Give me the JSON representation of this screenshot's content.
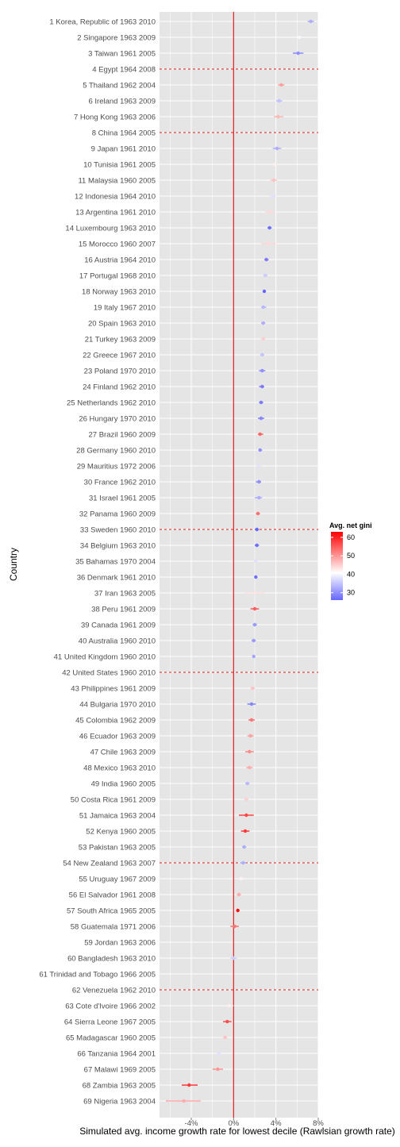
{
  "chart_data": {
    "type": "scatter",
    "xlabel": "Simulated avg. income growth rate for lowest decile (Rawlsian growth rate)",
    "ylabel": "Country",
    "xlim": [
      -7,
      8
    ],
    "x_ticks": [
      -4,
      0,
      4,
      8
    ],
    "x_tick_labels": [
      "-4%",
      "0%",
      "4%",
      "8%"
    ],
    "reference_line_x": 0,
    "grid": true,
    "legend": {
      "title": "Avg. net gini",
      "position": "right",
      "ticks": [
        30,
        40,
        50,
        60
      ],
      "range": [
        26,
        63
      ]
    },
    "colors": {
      "panel": "#e5e5e5",
      "grid": "#ffffff",
      "reference": "#e31a1c",
      "low": "#6666ff",
      "mid": "#ffffff",
      "high": "#ff0000"
    },
    "dashed_separators_after_rank": [
      3,
      7,
      32,
      41,
      53,
      61
    ],
    "countries": [
      {
        "label": "1 Korea, Republic of 1963 2010",
        "growth": 7.3,
        "lo": 7.0,
        "hi": 7.6,
        "gini": 33
      },
      {
        "label": "2 Singapore 1963 2009",
        "growth": 6.2,
        "lo": 5.9,
        "hi": 6.5,
        "gini": 40
      },
      {
        "label": "3 Taiwan 1961 2005",
        "growth": 6.1,
        "lo": 5.6,
        "hi": 6.6,
        "gini": 30
      },
      {
        "label": "4 Egypt 1964 2008",
        "growth": null,
        "lo": null,
        "hi": null,
        "gini": null
      },
      {
        "label": "5 Thailand 1962 2004",
        "growth": 4.5,
        "lo": 4.2,
        "hi": 4.8,
        "gini": 49
      },
      {
        "label": "6 Ireland 1963 2009",
        "growth": 4.3,
        "lo": 4.0,
        "hi": 4.6,
        "gini": 35
      },
      {
        "label": "7 Hong Kong 1963 2006",
        "growth": 4.2,
        "lo": 3.8,
        "hi": 4.7,
        "gini": 47
      },
      {
        "label": "8 China 1964 2005",
        "growth": null,
        "lo": null,
        "hi": null,
        "gini": null
      },
      {
        "label": "9 Japan 1961 2010",
        "growth": 4.1,
        "lo": 3.7,
        "hi": 4.5,
        "gini": 33
      },
      {
        "label": "10 Tunisia 1961 2005",
        "growth": 3.9,
        "lo": 3.6,
        "hi": 4.2,
        "gini": 42
      },
      {
        "label": "11 Malaysia 1960 2005",
        "growth": 3.8,
        "lo": 3.5,
        "hi": 4.1,
        "gini": 46
      },
      {
        "label": "12 Indonesia 1964 2010",
        "growth": 3.7,
        "lo": 3.4,
        "hi": 4.0,
        "gini": 38
      },
      {
        "label": "13 Argentina 1961 2010",
        "growth": 3.4,
        "lo": 3.0,
        "hi": 3.9,
        "gini": 44
      },
      {
        "label": "14 Luxembourg 1963 2010",
        "growth": 3.4,
        "lo": 3.2,
        "hi": 3.6,
        "gini": 27
      },
      {
        "label": "15 Morocco 1960 2007",
        "growth": 3.3,
        "lo": 2.6,
        "hi": 4.0,
        "gini": 44
      },
      {
        "label": "16 Austria 1964 2010",
        "growth": 3.1,
        "lo": 2.9,
        "hi": 3.3,
        "gini": 28
      },
      {
        "label": "17 Portugal 1968 2010",
        "growth": 3.0,
        "lo": 2.8,
        "hi": 3.2,
        "gini": 36
      },
      {
        "label": "18 Norway 1963 2010",
        "growth": 2.9,
        "lo": 2.8,
        "hi": 3.0,
        "gini": 26
      },
      {
        "label": "19 Italy 1967 2010",
        "growth": 2.8,
        "lo": 2.6,
        "hi": 3.1,
        "gini": 34
      },
      {
        "label": "20 Spain 1963 2010",
        "growth": 2.8,
        "lo": 2.6,
        "hi": 3.0,
        "gini": 33
      },
      {
        "label": "21 Turkey 1963 2009",
        "growth": 2.8,
        "lo": 2.6,
        "hi": 3.0,
        "gini": 45
      },
      {
        "label": "22 Greece 1967 2010",
        "growth": 2.7,
        "lo": 2.5,
        "hi": 2.9,
        "gini": 35
      },
      {
        "label": "23 Poland 1970 2010",
        "growth": 2.7,
        "lo": 2.4,
        "hi": 3.0,
        "gini": 30
      },
      {
        "label": "24 Finland 1962 2010",
        "growth": 2.7,
        "lo": 2.4,
        "hi": 2.9,
        "gini": 28
      },
      {
        "label": "25 Netherlands 1962 2010",
        "growth": 2.6,
        "lo": 2.4,
        "hi": 2.8,
        "gini": 28
      },
      {
        "label": "26 Hungary 1970 2010",
        "growth": 2.6,
        "lo": 2.3,
        "hi": 2.9,
        "gini": 29
      },
      {
        "label": "27 Brazil 1960 2009",
        "growth": 2.5,
        "lo": 2.3,
        "hi": 2.8,
        "gini": 54
      },
      {
        "label": "28 Germany 1960 2010",
        "growth": 2.5,
        "lo": 2.4,
        "hi": 2.7,
        "gini": 30
      },
      {
        "label": "29 Mauritius 1972 2006",
        "growth": 2.4,
        "lo": 2.2,
        "hi": 2.6,
        "gini": 38
      },
      {
        "label": "30 France 1962 2010",
        "growth": 2.4,
        "lo": 2.1,
        "hi": 2.6,
        "gini": 30
      },
      {
        "label": "31 Israel 1961 2005",
        "growth": 2.4,
        "lo": 2.0,
        "hi": 2.7,
        "gini": 33
      },
      {
        "label": "32 Panama 1960 2009",
        "growth": 2.3,
        "lo": 2.1,
        "hi": 2.5,
        "gini": 53
      },
      {
        "label": "33 Sweden 1960 2010",
        "growth": 2.2,
        "lo": 2.0,
        "hi": 2.4,
        "gini": 26
      },
      {
        "label": "34 Belgium 1963 2010",
        "growth": 2.2,
        "lo": 2.0,
        "hi": 2.4,
        "gini": 27
      },
      {
        "label": "35 Bahamas 1970 2004",
        "growth": 2.1,
        "lo": 1.9,
        "hi": 2.3,
        "gini": 38
      },
      {
        "label": "36 Denmark 1961 2010",
        "growth": 2.1,
        "lo": 2.0,
        "hi": 2.2,
        "gini": 27
      },
      {
        "label": "37 Iran 1963 2005",
        "growth": 2.0,
        "lo": 1.0,
        "hi": 3.0,
        "gini": 43
      },
      {
        "label": "38 Peru 1961 2009",
        "growth": 2.0,
        "lo": 1.6,
        "hi": 2.4,
        "gini": 55
      },
      {
        "label": "39 Canada 1961 2009",
        "growth": 2.0,
        "lo": 1.8,
        "hi": 2.2,
        "gini": 31
      },
      {
        "label": "40 Australia 1960 2010",
        "growth": 1.9,
        "lo": 1.7,
        "hi": 2.1,
        "gini": 31
      },
      {
        "label": "41 United Kingdom 1960 2010",
        "growth": 1.9,
        "lo": 1.8,
        "hi": 2.0,
        "gini": 32
      },
      {
        "label": "42 United States 1960 2010",
        "growth": null,
        "lo": null,
        "hi": null,
        "gini": null
      },
      {
        "label": "43 Philippines 1961 2009",
        "growth": 1.8,
        "lo": 1.6,
        "hi": 2.0,
        "gini": 46
      },
      {
        "label": "44 Bulgaria 1970 2010",
        "growth": 1.7,
        "lo": 1.3,
        "hi": 2.1,
        "gini": 29
      },
      {
        "label": "45 Colombia 1962 2009",
        "growth": 1.7,
        "lo": 1.4,
        "hi": 2.0,
        "gini": 53
      },
      {
        "label": "46 Ecuador 1963 2009",
        "growth": 1.6,
        "lo": 1.3,
        "hi": 1.9,
        "gini": 49
      },
      {
        "label": "47 Chile 1963 2009",
        "growth": 1.5,
        "lo": 1.1,
        "hi": 1.9,
        "gini": 51
      },
      {
        "label": "48 Mexico 1963 2010",
        "growth": 1.5,
        "lo": 1.2,
        "hi": 1.8,
        "gini": 48
      },
      {
        "label": "49 India 1960 2005",
        "growth": 1.3,
        "lo": 1.1,
        "hi": 1.5,
        "gini": 34
      },
      {
        "label": "50 Costa Rica 1961 2009",
        "growth": 1.2,
        "lo": 1.0,
        "hi": 1.4,
        "gini": 45
      },
      {
        "label": "51 Jamaica 1963 2004",
        "growth": 1.2,
        "lo": 0.5,
        "hi": 1.9,
        "gini": 57
      },
      {
        "label": "52 Kenya 1960 2005",
        "growth": 1.1,
        "lo": 0.7,
        "hi": 1.5,
        "gini": 58
      },
      {
        "label": "53 Pakistan 1963 2005",
        "growth": 1.0,
        "lo": 0.8,
        "hi": 1.2,
        "gini": 33
      },
      {
        "label": "54 New Zealand 1963 2007",
        "growth": 0.9,
        "lo": 0.6,
        "hi": 1.2,
        "gini": 33
      },
      {
        "label": "55 Uruguay 1967 2009",
        "growth": 0.7,
        "lo": 0.4,
        "hi": 1.0,
        "gini": 42
      },
      {
        "label": "56 El Salvador 1961 2008",
        "growth": 0.5,
        "lo": 0.3,
        "hi": 0.7,
        "gini": 48
      },
      {
        "label": "57 South Africa 1965 2005",
        "growth": 0.4,
        "lo": 0.3,
        "hi": 0.5,
        "gini": 62
      },
      {
        "label": "58 Guatemala 1971 2006",
        "growth": 0.1,
        "lo": -0.3,
        "hi": 0.5,
        "gini": 53
      },
      {
        "label": "59 Jordan 1963 2006",
        "growth": null,
        "lo": null,
        "hi": null,
        "gini": null
      },
      {
        "label": "60 Bangladesh 1963 2010",
        "growth": 0.0,
        "lo": -0.3,
        "hi": 0.3,
        "gini": 36
      },
      {
        "label": "61 Trinidad and Tobago 1966 2005",
        "growth": null,
        "lo": null,
        "hi": null,
        "gini": null
      },
      {
        "label": "62 Venezuela 1962 2010",
        "growth": null,
        "lo": null,
        "hi": null,
        "gini": null
      },
      {
        "label": "63 Cote d'Ivoire 1966 2002",
        "growth": -0.4,
        "lo": -0.8,
        "hi": 0.0,
        "gini": 42
      },
      {
        "label": "64 Sierra Leone 1967 2005",
        "growth": -0.6,
        "lo": -1.0,
        "hi": -0.2,
        "gini": 56
      },
      {
        "label": "65 Madagascar 1960 2005",
        "growth": -0.8,
        "lo": -1.0,
        "hi": -0.6,
        "gini": 46
      },
      {
        "label": "66 Tanzania 1964 2001",
        "growth": -1.4,
        "lo": -1.6,
        "hi": -1.2,
        "gini": 38
      },
      {
        "label": "67 Malawi 1969 2005",
        "growth": -1.5,
        "lo": -2.0,
        "hi": -1.0,
        "gini": 50
      },
      {
        "label": "68 Zambia 1963 2005",
        "growth": -4.2,
        "lo": -4.9,
        "hi": -3.4,
        "gini": 58
      },
      {
        "label": "69 Nigeria 1963 2004",
        "growth": -4.7,
        "lo": -6.4,
        "hi": -3.1,
        "gini": 48
      }
    ]
  }
}
